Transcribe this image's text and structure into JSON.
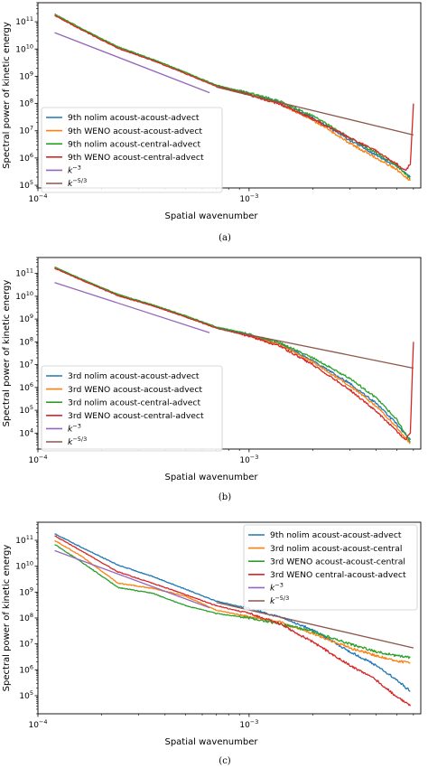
{
  "chart_data": [
    {
      "type": "line",
      "panel_caption": "(a)",
      "xlabel": "Spatial wavenumber",
      "ylabel": "Spectral power of kinetic energy",
      "xscale": "log",
      "yscale": "log",
      "xlim": [
        0.0001,
        0.0065
      ],
      "ylim": [
        80000.0,
        500000000000.0
      ],
      "xticks": [
        {
          "value": 0.0001,
          "base": "10",
          "exp": "−4"
        },
        {
          "value": 0.001,
          "base": "10",
          "exp": "−3"
        }
      ],
      "yticks": [
        {
          "value": 100000.0,
          "base": "10",
          "exp": "5"
        },
        {
          "value": 1000000.0,
          "base": "10",
          "exp": "6"
        },
        {
          "value": 10000000.0,
          "base": "10",
          "exp": "7"
        },
        {
          "value": 100000000.0,
          "base": "10",
          "exp": "8"
        },
        {
          "value": 1000000000.0,
          "base": "10",
          "exp": "9"
        },
        {
          "value": 10000000000.0,
          "base": "10",
          "exp": "10"
        },
        {
          "value": 100000000000.0,
          "base": "10",
          "exp": "11"
        }
      ],
      "legend_position": "lower-left",
      "series": [
        {
          "name": "9th nolim acoust-acoust-advect",
          "color": "#1f77b4",
          "x": [
            0.00012,
            0.00016,
            0.00024,
            0.00035,
            0.0005,
            0.0007,
            0.001,
            0.0014,
            0.002,
            0.003,
            0.004,
            0.005,
            0.0058
          ],
          "y": [
            180000000000.0,
            55000000000.0,
            11000000000.0,
            4000000000.0,
            1300000000.0,
            450000000.0,
            230000000.0,
            110000000.0,
            30000000.0,
            4500000.0,
            1300000.0,
            500000.0,
            200000.0
          ]
        },
        {
          "name": "9th WENO acoust-acoust-advect",
          "color": "#ff7f0e",
          "x": [
            0.00012,
            0.00016,
            0.00024,
            0.00035,
            0.0005,
            0.0007,
            0.001,
            0.0014,
            0.002,
            0.003,
            0.004,
            0.005,
            0.0058
          ],
          "y": [
            180000000000.0,
            55000000000.0,
            11000000000.0,
            4000000000.0,
            1300000000.0,
            450000000.0,
            220000000.0,
            100000000.0,
            25000000.0,
            3500000.0,
            1000000.0,
            380000.0,
            150000.0
          ]
        },
        {
          "name": "9th nolim acoust-central-advect",
          "color": "#2ca02c",
          "x": [
            0.00012,
            0.00016,
            0.00024,
            0.00035,
            0.0005,
            0.0007,
            0.001,
            0.0014,
            0.002,
            0.003,
            0.004,
            0.005,
            0.0058
          ],
          "y": [
            190000000000.0,
            58000000000.0,
            12000000000.0,
            4200000000.0,
            1400000000.0,
            470000000.0,
            240000000.0,
            120000000.0,
            35000000.0,
            5500000.0,
            1500000.0,
            550000.0,
            180000.0
          ]
        },
        {
          "name": "9th WENO acoust-central-advect",
          "color": "#d62728",
          "x": [
            0.00012,
            0.00016,
            0.00024,
            0.00035,
            0.0005,
            0.0007,
            0.001,
            0.0014,
            0.002,
            0.003,
            0.004,
            0.005,
            0.0055,
            0.0058,
            0.006
          ],
          "y": [
            170000000000.0,
            52000000000.0,
            10500000000.0,
            3800000000.0,
            1250000000.0,
            430000000.0,
            210000000.0,
            95000000.0,
            28000000.0,
            5500000.0,
            1800000.0,
            600000.0,
            350000.0,
            600000.0,
            100000000.0
          ]
        },
        {
          "name": "k^{-3}",
          "color": "#9467bd",
          "x": [
            0.00012,
            0.00065
          ],
          "y": [
            40000000000.0,
            250000000.0
          ]
        },
        {
          "name": "k^{-5/3}",
          "color": "#8c564b",
          "x": [
            0.0007,
            0.006
          ],
          "y": [
            400000000.0,
            7000000.0
          ]
        }
      ]
    },
    {
      "type": "line",
      "panel_caption": "(b)",
      "xlabel": "Spatial wavenumber",
      "ylabel": "Spectral power of kinetic energy",
      "xscale": "log",
      "yscale": "log",
      "xlim": [
        0.0001,
        0.0065
      ],
      "ylim": [
        2000.0,
        500000000000.0
      ],
      "xticks": [
        {
          "value": 0.0001,
          "base": "10",
          "exp": "−4"
        },
        {
          "value": 0.001,
          "base": "10",
          "exp": "−3"
        }
      ],
      "yticks": [
        {
          "value": 10000.0,
          "base": "10",
          "exp": "4"
        },
        {
          "value": 100000.0,
          "base": "10",
          "exp": "5"
        },
        {
          "value": 1000000.0,
          "base": "10",
          "exp": "6"
        },
        {
          "value": 10000000.0,
          "base": "10",
          "exp": "7"
        },
        {
          "value": 100000000.0,
          "base": "10",
          "exp": "8"
        },
        {
          "value": 1000000000.0,
          "base": "10",
          "exp": "9"
        },
        {
          "value": 10000000000.0,
          "base": "10",
          "exp": "10"
        },
        {
          "value": 100000000000.0,
          "base": "10",
          "exp": "11"
        }
      ],
      "legend_position": "lower-left",
      "series": [
        {
          "name": "3rd nolim acoust-acoust-advect",
          "color": "#1f77b4",
          "x": [
            0.00012,
            0.00016,
            0.00024,
            0.00035,
            0.0005,
            0.0007,
            0.001,
            0.0014,
            0.002,
            0.003,
            0.004,
            0.005,
            0.0058
          ],
          "y": [
            180000000000.0,
            55000000000.0,
            11000000000.0,
            4000000000.0,
            1300000000.0,
            420000000.0,
            200000000.0,
            80000000.0,
            15000000.0,
            1500000.0,
            200000.0,
            25000.0,
            5000.0
          ]
        },
        {
          "name": "3rd WENO acoust-acoust-advect",
          "color": "#ff7f0e",
          "x": [
            0.00012,
            0.00016,
            0.00024,
            0.00035,
            0.0005,
            0.0007,
            0.001,
            0.0014,
            0.002,
            0.003,
            0.004,
            0.005,
            0.0058
          ],
          "y": [
            180000000000.0,
            55000000000.0,
            11000000000.0,
            4000000000.0,
            1300000000.0,
            420000000.0,
            190000000.0,
            75000000.0,
            13000000.0,
            1200000.0,
            150000.0,
            18000.0,
            3500.0
          ]
        },
        {
          "name": "3rd nolim acoust-central-advect",
          "color": "#2ca02c",
          "x": [
            0.00012,
            0.00016,
            0.00024,
            0.00035,
            0.0005,
            0.0007,
            0.001,
            0.0014,
            0.002,
            0.003,
            0.004,
            0.005,
            0.0058
          ],
          "y": [
            190000000000.0,
            58000000000.0,
            12000000000.0,
            4200000000.0,
            1400000000.0,
            450000000.0,
            220000000.0,
            90000000.0,
            20000000.0,
            2500000.0,
            350000.0,
            40000.0,
            4000.0
          ]
        },
        {
          "name": "3rd WENO acoust-central-advect",
          "color": "#d62728",
          "x": [
            0.00012,
            0.00016,
            0.00024,
            0.00035,
            0.0005,
            0.0007,
            0.001,
            0.0014,
            0.002,
            0.003,
            0.004,
            0.005,
            0.0055,
            0.0058,
            0.006
          ],
          "y": [
            170000000000.0,
            52000000000.0,
            10500000000.0,
            3800000000.0,
            1250000000.0,
            400000000.0,
            180000000.0,
            65000000.0,
            10000000.0,
            800000.0,
            90000.0,
            12000.0,
            5000.0,
            10000.0,
            100000000.0
          ]
        },
        {
          "name": "k^{-3}",
          "color": "#9467bd",
          "x": [
            0.00012,
            0.00065
          ],
          "y": [
            40000000000.0,
            250000000.0
          ]
        },
        {
          "name": "k^{-5/3}",
          "color": "#8c564b",
          "x": [
            0.0007,
            0.006
          ],
          "y": [
            400000000.0,
            7000000.0
          ]
        }
      ]
    },
    {
      "type": "line",
      "panel_caption": "(c)",
      "xlabel": "Spatial wavenumber",
      "ylabel": "Spectral power of kinetic energy",
      "xscale": "log",
      "yscale": "log",
      "xlim": [
        0.0001,
        0.0065
      ],
      "ylim": [
        20000.0,
        500000000000.0
      ],
      "xticks": [
        {
          "value": 0.0001,
          "base": "10",
          "exp": "−4"
        },
        {
          "value": 0.001,
          "base": "10",
          "exp": "−3"
        }
      ],
      "yticks": [
        {
          "value": 100000.0,
          "base": "10",
          "exp": "5"
        },
        {
          "value": 1000000.0,
          "base": "10",
          "exp": "6"
        },
        {
          "value": 10000000.0,
          "base": "10",
          "exp": "7"
        },
        {
          "value": 100000000.0,
          "base": "10",
          "exp": "8"
        },
        {
          "value": 1000000000.0,
          "base": "10",
          "exp": "9"
        },
        {
          "value": 10000000000.0,
          "base": "10",
          "exp": "10"
        },
        {
          "value": 100000000000.0,
          "base": "10",
          "exp": "11"
        }
      ],
      "legend_position": "upper-right",
      "series": [
        {
          "name": "9th nolim acoust-acoust-advect",
          "color": "#1f77b4",
          "x": [
            0.00012,
            0.00016,
            0.00024,
            0.00035,
            0.0005,
            0.0007,
            0.001,
            0.0014,
            0.002,
            0.003,
            0.004,
            0.005,
            0.0058
          ],
          "y": [
            180000000000.0,
            55000000000.0,
            11000000000.0,
            4000000000.0,
            1300000000.0,
            450000000.0,
            230000000.0,
            110000000.0,
            35000000.0,
            5000000.0,
            1500000.0,
            400000.0,
            150000.0
          ]
        },
        {
          "name": "3rd nolim acoust-acoust-central",
          "color": "#ff7f0e",
          "x": [
            0.00012,
            0.00016,
            0.00024,
            0.00035,
            0.0005,
            0.0007,
            0.001,
            0.0014,
            0.002,
            0.003,
            0.004,
            0.005,
            0.0058
          ],
          "y": [
            100000000000.0,
            25000000000.0,
            2200000000.0,
            1400000000.0,
            700000000.0,
            200000000.0,
            110000000.0,
            70000000.0,
            25000000.0,
            7000000.0,
            3500000.0,
            2200000.0,
            1800000.0
          ]
        },
        {
          "name": "3rd WENO acoust-acoust-central",
          "color": "#2ca02c",
          "x": [
            0.00012,
            0.00016,
            0.00024,
            0.00035,
            0.0005,
            0.0007,
            0.001,
            0.0014,
            0.002,
            0.003,
            0.004,
            0.005,
            0.0058
          ],
          "y": [
            70000000000.0,
            15000000000.0,
            1500000000.0,
            900000000.0,
            300000000.0,
            150000000.0,
            100000000.0,
            60000000.0,
            30000000.0,
            10000000.0,
            5000000.0,
            3500000.0,
            3000000.0
          ]
        },
        {
          "name": "3rd WENO central-acoust-advect",
          "color": "#d62728",
          "x": [
            0.00012,
            0.00016,
            0.00024,
            0.00035,
            0.0005,
            0.0007,
            0.001,
            0.0014,
            0.002,
            0.003,
            0.004,
            0.005,
            0.0058
          ],
          "y": [
            150000000000.0,
            40000000000.0,
            6000000000.0,
            2200000000.0,
            800000000.0,
            300000000.0,
            150000000.0,
            60000000.0,
            12000000.0,
            1500000.0,
            400000.0,
            90000.0,
            40000.0
          ]
        },
        {
          "name": "k^{-3}",
          "color": "#9467bd",
          "x": [
            0.00012,
            0.00065
          ],
          "y": [
            40000000000.0,
            250000000.0
          ]
        },
        {
          "name": "k^{-5/3}",
          "color": "#8c564b",
          "x": [
            0.0007,
            0.006
          ],
          "y": [
            400000000.0,
            7000000.0
          ]
        }
      ]
    }
  ]
}
